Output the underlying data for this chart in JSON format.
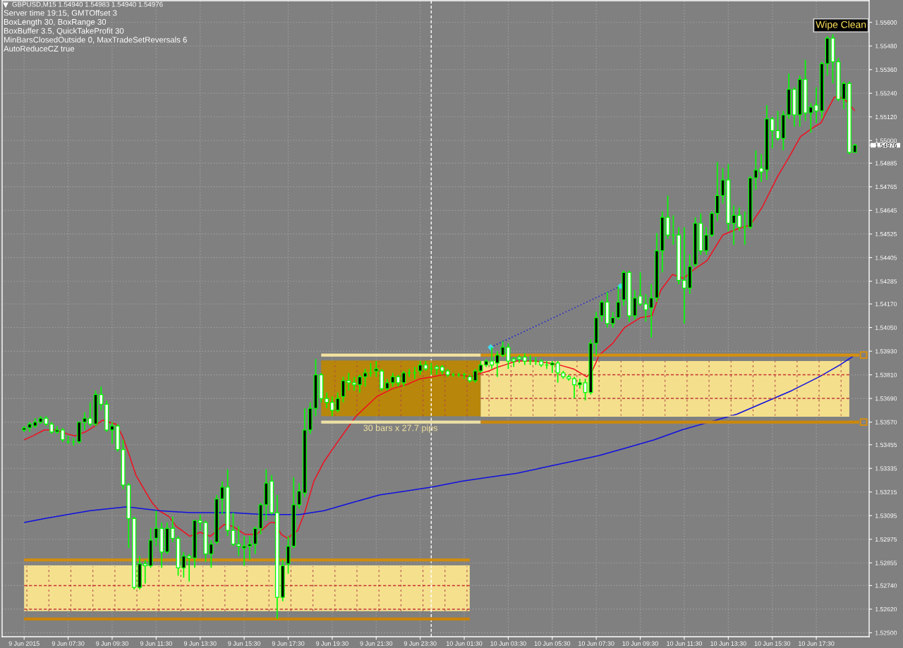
{
  "chart_data": {
    "type": "candlestick",
    "title": "GBPUSD,M15 1.54940 1.54983 1.54940 1.54976",
    "subtitle": "Server time 19:15, GMTOffset 3\nBoxLength 30, BoxRange 30\nBoxBuffer 3.5, QuickTakeProfit 30\nMinBarsClosedOutside 0, MaxTradeSetReversals 6\nAutoReduceCZ true",
    "annotations": [
      "Wipe Clean",
      {
        "text": "30 bars x 27.7 pips",
        "x": "2015-06-09T22:36",
        "y": 1.5357
      }
    ],
    "x": [
      "2015-06-09T05:30",
      "2015-06-09T05:45",
      "2015-06-09T06:00",
      "2015-06-09T06:15",
      "2015-06-09T06:30",
      "2015-06-09T06:45",
      "2015-06-09T07:00",
      "2015-06-09T07:15",
      "2015-06-09T07:30",
      "2015-06-09T07:45",
      "2015-06-09T08:00",
      "2015-06-09T08:15",
      "2015-06-09T08:30",
      "2015-06-09T08:45",
      "2015-06-09T09:00",
      "2015-06-09T09:15",
      "2015-06-09T09:30",
      "2015-06-09T09:45",
      "2015-06-09T10:00",
      "2015-06-09T10:15",
      "2015-06-09T10:30",
      "2015-06-09T10:45",
      "2015-06-09T11:00",
      "2015-06-09T11:15",
      "2015-06-09T11:30",
      "2015-06-09T11:45",
      "2015-06-09T12:00",
      "2015-06-09T12:15",
      "2015-06-09T12:30",
      "2015-06-09T12:45",
      "2015-06-09T13:00",
      "2015-06-09T13:15",
      "2015-06-09T13:30",
      "2015-06-09T13:45",
      "2015-06-09T14:00",
      "2015-06-09T14:15",
      "2015-06-09T14:30",
      "2015-06-09T14:45",
      "2015-06-09T15:00",
      "2015-06-09T15:15",
      "2015-06-09T15:30",
      "2015-06-09T15:45",
      "2015-06-09T16:00",
      "2015-06-09T16:15",
      "2015-06-09T16:30",
      "2015-06-09T16:45",
      "2015-06-09T17:00",
      "2015-06-09T17:15",
      "2015-06-09T17:30",
      "2015-06-09T17:45",
      "2015-06-09T18:00",
      "2015-06-09T18:15",
      "2015-06-09T18:30",
      "2015-06-09T18:45",
      "2015-06-09T19:00",
      "2015-06-09T19:15",
      "2015-06-09T19:30",
      "2015-06-09T19:45",
      "2015-06-09T20:00",
      "2015-06-09T20:15",
      "2015-06-09T20:30",
      "2015-06-09T20:45",
      "2015-06-09T21:00",
      "2015-06-09T21:15",
      "2015-06-09T21:30",
      "2015-06-09T21:45",
      "2015-06-09T22:00",
      "2015-06-09T22:15",
      "2015-06-09T22:30",
      "2015-06-09T22:45",
      "2015-06-09T23:00",
      "2015-06-09T23:15",
      "2015-06-09T23:30",
      "2015-06-09T23:45",
      "2015-06-10T00:00",
      "2015-06-10T00:15",
      "2015-06-10T00:30",
      "2015-06-10T00:45",
      "2015-06-10T01:00",
      "2015-06-10T01:15",
      "2015-06-10T01:30",
      "2015-06-10T01:45",
      "2015-06-10T02:00",
      "2015-06-10T02:15",
      "2015-06-10T02:30",
      "2015-06-10T02:45",
      "2015-06-10T03:00",
      "2015-06-10T03:15",
      "2015-06-10T03:30",
      "2015-06-10T03:45",
      "2015-06-10T04:00",
      "2015-06-10T04:15",
      "2015-06-10T04:30",
      "2015-06-10T04:45",
      "2015-06-10T05:00",
      "2015-06-10T05:15",
      "2015-06-10T05:30",
      "2015-06-10T05:45",
      "2015-06-10T06:00",
      "2015-06-10T06:15",
      "2015-06-10T06:30",
      "2015-06-10T06:45",
      "2015-06-10T07:00",
      "2015-06-10T07:15",
      "2015-06-10T07:30",
      "2015-06-10T07:45",
      "2015-06-10T08:00",
      "2015-06-10T08:15",
      "2015-06-10T08:30",
      "2015-06-10T08:45",
      "2015-06-10T09:00",
      "2015-06-10T09:15",
      "2015-06-10T09:30",
      "2015-06-10T09:45",
      "2015-06-10T10:00",
      "2015-06-10T10:15",
      "2015-06-10T10:30",
      "2015-06-10T10:45",
      "2015-06-10T11:00",
      "2015-06-10T11:15",
      "2015-06-10T11:30",
      "2015-06-10T11:45",
      "2015-06-10T12:00",
      "2015-06-10T12:15",
      "2015-06-10T12:30",
      "2015-06-10T12:45",
      "2015-06-10T13:00",
      "2015-06-10T13:15",
      "2015-06-10T13:30",
      "2015-06-10T13:45",
      "2015-06-10T14:00",
      "2015-06-10T14:15",
      "2015-06-10T14:30",
      "2015-06-10T14:45",
      "2015-06-10T15:00",
      "2015-06-10T15:15",
      "2015-06-10T15:30",
      "2015-06-10T15:45",
      "2015-06-10T16:00",
      "2015-06-10T16:15",
      "2015-06-10T16:30",
      "2015-06-10T16:45",
      "2015-06-10T17:00",
      "2015-06-10T17:15",
      "2015-06-10T17:30",
      "2015-06-10T17:45",
      "2015-06-10T18:00",
      "2015-06-10T18:15",
      "2015-06-10T18:30",
      "2015-06-10T18:45",
      "2015-06-10T19:00",
      "2015-06-10T19:15"
    ],
    "ohlc": [
      [
        1.5353,
        1.5355,
        1.5352,
        1.5354
      ],
      [
        1.5354,
        1.5357,
        1.5352,
        1.5356
      ],
      [
        1.5355,
        1.5359,
        1.5354,
        1.5357
      ],
      [
        1.5357,
        1.536,
        1.5356,
        1.5359
      ],
      [
        1.5359,
        1.536,
        1.5355,
        1.5356
      ],
      [
        1.5356,
        1.5357,
        1.5351,
        1.5352
      ],
      [
        1.5352,
        1.5355,
        1.5351,
        1.5353
      ],
      [
        1.5353,
        1.5354,
        1.5347,
        1.5348
      ],
      [
        1.5347,
        1.535,
        1.5346,
        1.5347
      ],
      [
        1.5347,
        1.5349,
        1.5345,
        1.5347
      ],
      [
        1.5347,
        1.5357,
        1.5346,
        1.5357
      ],
      [
        1.5357,
        1.5362,
        1.5353,
        1.5359
      ],
      [
        1.5359,
        1.5367,
        1.5355,
        1.5356
      ],
      [
        1.5356,
        1.5373,
        1.5355,
        1.5371
      ],
      [
        1.5371,
        1.5375,
        1.5363,
        1.5366
      ],
      [
        1.5366,
        1.5368,
        1.5352,
        1.5353
      ],
      [
        1.5353,
        1.5357,
        1.5346,
        1.5355
      ],
      [
        1.5355,
        1.5356,
        1.5342,
        1.5343
      ],
      [
        1.5343,
        1.5348,
        1.5323,
        1.5325
      ],
      [
        1.5325,
        1.5326,
        1.5293,
        1.5308
      ],
      [
        1.5308,
        1.5309,
        1.5272,
        1.5273
      ],
      [
        1.5273,
        1.5289,
        1.5272,
        1.5285
      ],
      [
        1.5285,
        1.5287,
        1.5275,
        1.5284
      ],
      [
        1.5284,
        1.5303,
        1.5283,
        1.5297
      ],
      [
        1.5298,
        1.5312,
        1.5294,
        1.5303
      ],
      [
        1.5303,
        1.5306,
        1.5283,
        1.5291
      ],
      [
        1.5291,
        1.5306,
        1.529,
        1.5303
      ],
      [
        1.5303,
        1.5309,
        1.5296,
        1.5298
      ],
      [
        1.5298,
        1.5299,
        1.5279,
        1.5283
      ],
      [
        1.5283,
        1.5291,
        1.5278,
        1.5289
      ],
      [
        1.5289,
        1.529,
        1.5276,
        1.5288
      ],
      [
        1.5288,
        1.5307,
        1.5283,
        1.5307
      ],
      [
        1.5307,
        1.531,
        1.5302,
        1.5306
      ],
      [
        1.5306,
        1.5307,
        1.5286,
        1.529
      ],
      [
        1.529,
        1.5297,
        1.5283,
        1.5295
      ],
      [
        1.5296,
        1.532,
        1.5295,
        1.5318
      ],
      [
        1.5318,
        1.5327,
        1.531,
        1.5324
      ],
      [
        1.5324,
        1.5333,
        1.5299,
        1.5302
      ],
      [
        1.5302,
        1.5311,
        1.5294,
        1.5295
      ],
      [
        1.5295,
        1.5304,
        1.5289,
        1.5294
      ],
      [
        1.5293,
        1.5299,
        1.5284,
        1.5294
      ],
      [
        1.5294,
        1.5299,
        1.5287,
        1.5295
      ],
      [
        1.5295,
        1.5304,
        1.529,
        1.5303
      ],
      [
        1.5303,
        1.5316,
        1.53,
        1.5315
      ],
      [
        1.5315,
        1.5333,
        1.5307,
        1.5326
      ],
      [
        1.5327,
        1.533,
        1.531,
        1.5311
      ],
      [
        1.5311,
        1.532,
        1.5257,
        1.5268
      ],
      [
        1.5268,
        1.5287,
        1.5266,
        1.5284
      ],
      [
        1.5285,
        1.5299,
        1.528,
        1.5294
      ],
      [
        1.5294,
        1.5329,
        1.5293,
        1.5315
      ],
      [
        1.5315,
        1.5326,
        1.5313,
        1.5322
      ],
      [
        1.5321,
        1.5364,
        1.5319,
        1.5353
      ],
      [
        1.5353,
        1.5367,
        1.5351,
        1.5364
      ],
      [
        1.5364,
        1.5389,
        1.536,
        1.5381
      ],
      [
        1.5381,
        1.5382,
        1.5367,
        1.5369
      ],
      [
        1.5369,
        1.5372,
        1.5364,
        1.5367
      ],
      [
        1.5367,
        1.537,
        1.536,
        1.5363
      ],
      [
        1.5363,
        1.5372,
        1.5362,
        1.5369
      ],
      [
        1.537,
        1.538,
        1.5367,
        1.5378
      ],
      [
        1.5378,
        1.5382,
        1.5373,
        1.5377
      ],
      [
        1.5377,
        1.538,
        1.5373,
        1.5376
      ],
      [
        1.5376,
        1.5381,
        1.5372,
        1.538
      ],
      [
        1.538,
        1.5384,
        1.5375,
        1.5382
      ],
      [
        1.5382,
        1.5387,
        1.538,
        1.5382
      ],
      [
        1.5383,
        1.5388,
        1.538,
        1.5384
      ],
      [
        1.5383,
        1.5384,
        1.5373,
        1.5374
      ],
      [
        1.5374,
        1.5379,
        1.5373,
        1.5377
      ],
      [
        1.5377,
        1.5382,
        1.5375,
        1.538
      ],
      [
        1.538,
        1.5381,
        1.5375,
        1.5377
      ],
      [
        1.5377,
        1.5383,
        1.5375,
        1.5382
      ],
      [
        1.5382,
        1.5384,
        1.538,
        1.5382
      ],
      [
        1.5382,
        1.5385,
        1.5379,
        1.5382
      ],
      [
        1.5383,
        1.5388,
        1.5381,
        1.5386
      ],
      [
        1.5386,
        1.5388,
        1.5383,
        1.5384
      ],
      [
        1.5384,
        1.5387,
        1.5381,
        1.5384
      ],
      [
        1.5385,
        1.5386,
        1.5381,
        1.5384
      ],
      [
        1.5385,
        1.5386,
        1.5381,
        1.5383
      ],
      [
        1.5383,
        1.5384,
        1.538,
        1.5381
      ],
      [
        1.5381,
        1.5382,
        1.538,
        1.5381
      ],
      [
        1.5381,
        1.5382,
        1.538,
        1.5381
      ],
      [
        1.5381,
        1.5382,
        1.5379,
        1.5381
      ],
      [
        1.538,
        1.5381,
        1.5377,
        1.5378
      ],
      [
        1.5378,
        1.5384,
        1.5377,
        1.5383
      ],
      [
        1.5383,
        1.5388,
        1.5382,
        1.5386
      ],
      [
        1.5386,
        1.5389,
        1.5385,
        1.5388
      ],
      [
        1.5388,
        1.5395,
        1.5384,
        1.5386
      ],
      [
        1.5387,
        1.5393,
        1.538,
        1.5391
      ],
      [
        1.5391,
        1.5398,
        1.539,
        1.5395
      ],
      [
        1.5395,
        1.5397,
        1.5384,
        1.5388
      ],
      [
        1.5389,
        1.539,
        1.5385,
        1.5388
      ],
      [
        1.539,
        1.5391,
        1.5387,
        1.5389
      ],
      [
        1.539,
        1.5392,
        1.5386,
        1.5388
      ],
      [
        1.5388,
        1.5391,
        1.5386,
        1.5388
      ],
      [
        1.5388,
        1.539,
        1.5386,
        1.5388
      ],
      [
        1.5388,
        1.5389,
        1.5385,
        1.5386
      ],
      [
        1.5386,
        1.5388,
        1.5384,
        1.5386
      ],
      [
        1.5386,
        1.5388,
        1.5382,
        1.5387
      ],
      [
        1.5387,
        1.5388,
        1.5377,
        1.5382
      ],
      [
        1.5382,
        1.5383,
        1.5379,
        1.538
      ],
      [
        1.538,
        1.5381,
        1.5378,
        1.5379
      ],
      [
        1.5379,
        1.538,
        1.5369,
        1.5376
      ],
      [
        1.5376,
        1.5379,
        1.5374,
        1.5377
      ],
      [
        1.5377,
        1.5379,
        1.5368,
        1.5372
      ],
      [
        1.5372,
        1.5399,
        1.5371,
        1.5397
      ],
      [
        1.5397,
        1.5413,
        1.5391,
        1.541
      ],
      [
        1.5411,
        1.5419,
        1.5408,
        1.5418
      ],
      [
        1.5418,
        1.5423,
        1.5405,
        1.5407
      ],
      [
        1.5407,
        1.5413,
        1.5405,
        1.541
      ],
      [
        1.541,
        1.5426,
        1.5409,
        1.5418
      ],
      [
        1.5419,
        1.5434,
        1.5416,
        1.5433
      ],
      [
        1.5433,
        1.5434,
        1.5408,
        1.5411
      ],
      [
        1.5411,
        1.5424,
        1.5409,
        1.542
      ],
      [
        1.5421,
        1.5433,
        1.5416,
        1.5417
      ],
      [
        1.5417,
        1.5422,
        1.5408,
        1.5414
      ],
      [
        1.5415,
        1.5427,
        1.54,
        1.542
      ],
      [
        1.542,
        1.5453,
        1.5418,
        1.5444
      ],
      [
        1.5444,
        1.5464,
        1.5433,
        1.5461
      ],
      [
        1.5461,
        1.5472,
        1.545,
        1.5452
      ],
      [
        1.5452,
        1.5462,
        1.5447,
        1.5452
      ],
      [
        1.5452,
        1.5456,
        1.5427,
        1.5429
      ],
      [
        1.5429,
        1.5456,
        1.5407,
        1.5425
      ],
      [
        1.5425,
        1.5442,
        1.5422,
        1.5436
      ],
      [
        1.5437,
        1.5461,
        1.5436,
        1.5458
      ],
      [
        1.5458,
        1.5463,
        1.5442,
        1.5444
      ],
      [
        1.5444,
        1.5456,
        1.5442,
        1.5452
      ],
      [
        1.5452,
        1.5464,
        1.5451,
        1.5463
      ],
      [
        1.5463,
        1.5489,
        1.5459,
        1.5472
      ],
      [
        1.5472,
        1.5486,
        1.5468,
        1.548
      ],
      [
        1.548,
        1.5488,
        1.5454,
        1.5458
      ],
      [
        1.5458,
        1.5467,
        1.5447,
        1.5462
      ],
      [
        1.5462,
        1.5466,
        1.5454,
        1.5456
      ],
      [
        1.5456,
        1.5464,
        1.5447,
        1.5456
      ],
      [
        1.5456,
        1.5482,
        1.5455,
        1.5481
      ],
      [
        1.5481,
        1.5495,
        1.5475,
        1.5485
      ],
      [
        1.5486,
        1.5493,
        1.5479,
        1.5484
      ],
      [
        1.5485,
        1.5518,
        1.548,
        1.5511
      ],
      [
        1.5511,
        1.5512,
        1.5496,
        1.5505
      ],
      [
        1.5505,
        1.5515,
        1.55,
        1.5501
      ],
      [
        1.5501,
        1.5515,
        1.5495,
        1.5513
      ],
      [
        1.5513,
        1.5534,
        1.5511,
        1.5526
      ],
      [
        1.5526,
        1.5527,
        1.5507,
        1.5513
      ],
      [
        1.5513,
        1.5533,
        1.5507,
        1.5531
      ],
      [
        1.5531,
        1.5541,
        1.551,
        1.5514
      ],
      [
        1.5514,
        1.5519,
        1.5504,
        1.5517
      ],
      [
        1.5518,
        1.5527,
        1.5509,
        1.5515
      ],
      [
        1.5515,
        1.554,
        1.5511,
        1.5539
      ],
      [
        1.5539,
        1.5553,
        1.5533,
        1.5552
      ],
      [
        1.5552,
        1.5554,
        1.5529,
        1.554
      ],
      [
        1.554,
        1.5542,
        1.552,
        1.5521
      ],
      [
        1.5521,
        1.553,
        1.5516,
        1.5529
      ],
      [
        1.5529,
        1.553,
        1.5493,
        1.5494
      ],
      [
        1.5494,
        1.54983,
        1.5494,
        1.54976
      ]
    ],
    "color": "#00ff00",
    "colors": [
      "#000000",
      "#000000",
      "#000000",
      "#000000",
      "#ffffff",
      "#ffffff",
      "#000000",
      "#ffffff",
      "#00ff00",
      "#00ff00",
      "#000000",
      "#000000",
      "#ffffff",
      "#000000",
      "#ffffff",
      "#ffffff",
      "#000000",
      "#ffffff",
      "#ffffff",
      "#ffffff",
      "#ffffff",
      "#000000",
      "#ffffff",
      "#000000",
      "#000000",
      "#ffffff",
      "#000000",
      "#ffffff",
      "#ffffff",
      "#000000",
      "#ffffff",
      "#000000",
      "#ffffff",
      "#ffffff",
      "#000000",
      "#000000",
      "#000000",
      "#ffffff",
      "#ffffff",
      "#ffffff",
      "#000000",
      "#000000",
      "#000000",
      "#000000",
      "#000000",
      "#ffffff",
      "#ffffff",
      "#000000",
      "#000000",
      "#000000",
      "#000000",
      "#000000",
      "#000000",
      "#000000",
      "#ffffff",
      "#ffffff",
      "#ffffff",
      "#000000",
      "#000000",
      "#ffffff",
      "#ffffff",
      "#000000",
      "#000000",
      "#00ff00",
      "#000000",
      "#ffffff",
      "#000000",
      "#000000",
      "#ffffff",
      "#000000",
      "#00ff00",
      "#00ff00",
      "#000000",
      "#ffffff",
      "#00ff00",
      "#ffffff",
      "#ffffff",
      "#ffffff",
      "#00ff00",
      "#00ff00",
      "#00ff00",
      "#ffffff",
      "#000000",
      "#000000",
      "#000000",
      "#ffffff",
      "#000000",
      "#000000",
      "#ffffff",
      "#ffffff",
      "#ffffff",
      "#ffffff",
      "#00ff00",
      "#00ff00",
      "#ffffff",
      "#00ff00",
      "#000000",
      "#ffffff",
      "#ffffff",
      "#ffffff",
      "#ffffff",
      "#000000",
      "#ffffff",
      "#000000",
      "#000000",
      "#000000",
      "#ffffff",
      "#000000",
      "#000000",
      "#000000",
      "#ffffff",
      "#000000",
      "#ffffff",
      "#ffffff",
      "#000000",
      "#000000",
      "#000000",
      "#ffffff",
      "#00ff00",
      "#ffffff",
      "#ffffff",
      "#000000",
      "#000000",
      "#ffffff",
      "#000000",
      "#000000",
      "#000000",
      "#000000",
      "#ffffff",
      "#000000",
      "#ffffff",
      "#00ff00",
      "#000000",
      "#000000",
      "#ffffff",
      "#000000",
      "#ffffff",
      "#ffffff",
      "#000000",
      "#000000",
      "#ffffff",
      "#000000",
      "#ffffff",
      "#000000",
      "#ffffff",
      "#000000",
      "#000000",
      "#ffffff",
      "#ffffff",
      "#000000",
      "#ffffff",
      "#000000"
    ],
    "series": [
      {
        "type": "line",
        "color": "#f01020",
        "x": [
          "2015-06-09T05:30",
          "2015-06-09T05:54",
          "2015-06-09T06:25",
          "2015-06-09T06:56",
          "2015-06-09T07:28",
          "2015-06-09T07:49",
          "2015-06-09T08:17",
          "2015-06-09T08:43",
          "2015-06-09T09:04",
          "2015-06-09T09:20",
          "2015-06-09T09:40",
          "2015-06-09T09:58",
          "2015-06-09T10:17",
          "2015-06-09T10:35",
          "2015-06-09T11:00",
          "2015-06-09T11:19",
          "2015-06-09T11:38",
          "2015-06-09T12:05",
          "2015-06-09T12:25",
          "2015-06-09T13:02",
          "2015-06-09T13:30",
          "2015-06-09T13:58",
          "2015-06-09T14:17",
          "2015-06-09T14:35",
          "2015-06-09T15:00",
          "2015-06-09T15:32",
          "2015-06-09T16:04",
          "2015-06-09T16:23",
          "2015-06-09T16:41",
          "2015-06-09T16:53",
          "2015-06-09T17:11",
          "2015-06-09T17:28",
          "2015-06-09T17:56",
          "2015-06-09T18:15",
          "2015-06-09T18:40",
          "2015-06-09T19:08",
          "2015-06-09T19:41",
          "2015-06-09T20:35",
          "2015-06-09T21:32",
          "2015-06-09T22:15",
          "2015-06-09T22:53",
          "2015-06-09T23:30",
          "2015-06-10T00:02",
          "2015-06-10T00:32",
          "2015-06-10T01:17",
          "2015-06-10T01:47",
          "2015-06-10T02:19",
          "2015-06-10T02:38",
          "2015-06-10T03:02",
          "2015-06-10T03:20",
          "2015-06-10T03:53",
          "2015-06-10T04:43",
          "2015-06-10T05:20",
          "2015-06-10T05:50",
          "2015-06-10T06:28",
          "2015-06-10T07:04",
          "2015-06-10T07:19",
          "2015-06-10T07:38",
          "2015-06-10T08:15",
          "2015-06-10T08:47",
          "2015-06-10T09:30",
          "2015-06-10T10:02",
          "2015-06-10T10:26",
          "2015-06-10T10:58",
          "2015-06-10T11:28",
          "2015-06-10T12:00",
          "2015-06-10T12:32",
          "2015-06-10T13:15",
          "2015-06-10T13:53",
          "2015-06-10T14:30",
          "2015-06-10T15:02",
          "2015-06-10T15:45",
          "2015-06-10T16:17",
          "2015-06-10T16:47",
          "2015-06-10T17:25",
          "2015-06-10T17:43",
          "2015-06-10T17:56",
          "2015-06-10T18:19",
          "2015-06-10T18:34",
          "2015-06-10T18:53",
          "2015-06-10T19:15"
        ],
        "values": [
          1.5348,
          1.535,
          1.5353,
          1.5353,
          1.5351,
          1.535,
          1.5352,
          1.5355,
          1.5358,
          1.5357,
          1.5356,
          1.535,
          1.534,
          1.533,
          1.5322,
          1.5316,
          1.5312,
          1.5309,
          1.5304,
          1.5299,
          1.5301,
          1.5299,
          1.5302,
          1.5305,
          1.5304,
          1.53,
          1.53,
          1.5303,
          1.5306,
          1.5306,
          1.53,
          1.5298,
          1.5302,
          1.5311,
          1.5327,
          1.5337,
          1.5346,
          1.536,
          1.537,
          1.5374,
          1.5376,
          1.5379,
          1.538,
          1.5381,
          1.5381,
          1.538,
          1.5382,
          1.5383,
          1.5385,
          1.5386,
          1.5388,
          1.5388,
          1.5387,
          1.5386,
          1.5384,
          1.538,
          1.5383,
          1.5391,
          1.5397,
          1.5405,
          1.541,
          1.5411,
          1.5424,
          1.5432,
          1.543,
          1.5435,
          1.5439,
          1.5452,
          1.5455,
          1.5457,
          1.5466,
          1.5482,
          1.5492,
          1.5502,
          1.5507,
          1.5509,
          1.5514,
          1.5522,
          1.5522,
          1.552,
          1.5515
        ]
      },
      {
        "type": "line",
        "color": "#1010e0",
        "x": [
          "2015-06-09T05:30",
          "2015-06-09T06:25",
          "2015-06-09T07:28",
          "2015-06-09T08:30",
          "2015-06-09T09:20",
          "2015-06-09T10:10",
          "2015-06-09T11:38",
          "2015-06-09T13:02",
          "2015-06-09T14:55",
          "2015-06-09T16:23",
          "2015-06-09T18:02",
          "2015-06-09T18:34",
          "2015-06-09T19:08",
          "2015-06-09T20:23",
          "2015-06-09T21:38",
          "2015-06-09T22:53",
          "2015-06-10T00:02",
          "2015-06-10T01:23",
          "2015-06-10T02:38",
          "2015-06-10T03:53",
          "2015-06-10T05:08",
          "2015-06-10T06:23",
          "2015-06-10T07:38",
          "2015-06-10T08:53",
          "2015-06-10T10:08",
          "2015-06-10T11:23",
          "2015-06-10T12:38",
          "2015-06-10T13:53",
          "2015-06-10T15:08",
          "2015-06-10T16:23",
          "2015-06-10T17:38",
          "2015-06-10T18:34",
          "2015-06-10T19:15"
        ],
        "values": [
          1.5306,
          1.5308,
          1.531,
          1.5312,
          1.5313,
          1.5314,
          1.5312,
          1.5311,
          1.5311,
          1.531,
          1.531,
          1.5311,
          1.5312,
          1.5316,
          1.532,
          1.5322,
          1.5324,
          1.5327,
          1.5329,
          1.5331,
          1.5334,
          1.5337,
          1.534,
          1.5344,
          1.5348,
          1.5353,
          1.5357,
          1.5361,
          1.5367,
          1.5373,
          1.538,
          1.5386,
          1.5391
        ]
      },
      {
        "type": "line",
        "color": "#f5e08e",
        "x": [
          "2015-06-09T05:30",
          "2015-06-10T01:45"
        ],
        "values": [
          1.5284,
          1.5284
        ],
        "lower": [
          1.5261,
          1.5261
        ],
        "upper": [
          1.5284,
          1.5284
        ]
      },
      {
        "type": "line",
        "color": "#d08c10",
        "x": [
          "2015-06-09T05:30",
          "2015-06-10T01:45"
        ],
        "values": [
          1.5287,
          1.5287
        ]
      },
      {
        "type": "line",
        "color": "#c8840c",
        "x": [
          "2015-06-09T05:30",
          "2015-06-10T01:45"
        ],
        "values": [
          1.5257,
          1.5257
        ]
      },
      {
        "type": "line",
        "color": "#c83232",
        "line_style": "dashed",
        "x": [
          "2015-06-09T05:30",
          "2015-06-10T01:45"
        ],
        "values": [
          1.5274,
          1.5274
        ]
      },
      {
        "type": "line",
        "color": "#c03838",
        "line_style": "dashed",
        "x": [
          "2015-06-09T05:30",
          "2015-06-10T01:45"
        ],
        "values": [
          1.5262,
          1.5262
        ]
      },
      {
        "type": "line",
        "color": "#b8860b",
        "x": [
          "2015-06-09T19:00",
          "2015-06-10T02:15"
        ],
        "values": [
          1.5388,
          1.5388
        ],
        "lower": [
          1.536,
          1.536
        ],
        "upper": [
          1.5388,
          1.5388
        ]
      },
      {
        "type": "line",
        "color": "#f3e3a0",
        "x": [
          "2015-06-09T19:00",
          "2015-06-10T02:15"
        ],
        "values": [
          1.5391,
          1.5391
        ]
      },
      {
        "type": "line",
        "color": "#ece0a6",
        "x": [
          "2015-06-09T19:00",
          "2015-06-10T02:15"
        ],
        "values": [
          1.5357,
          1.5357
        ]
      },
      {
        "type": "line",
        "color": "#f4df8c",
        "x": [
          "2015-06-10T02:15",
          "2015-06-10T19:00"
        ],
        "values": [
          1.536,
          1.536
        ],
        "lower": [
          1.536,
          1.536
        ],
        "upper": [
          1.5388,
          1.5388
        ]
      },
      {
        "type": "line",
        "color": "#d4900f",
        "x": [
          "2015-06-10T02:15",
          "2015-06-10T19:27"
        ],
        "values": [
          1.5391,
          1.5391
        ]
      },
      {
        "type": "line",
        "color": "#cc880b",
        "x": [
          "2015-06-10T02:15",
          "2015-06-10T19:27"
        ],
        "values": [
          1.5357,
          1.5357
        ]
      },
      {
        "type": "line",
        "color": "#c43434",
        "line_style": "dashed",
        "x": [
          "2015-06-10T02:15",
          "2015-06-10T19:00"
        ],
        "values": [
          1.5381,
          1.5381
        ]
      },
      {
        "type": "line",
        "color": "#bc3a3a",
        "line_style": "dashed",
        "x": [
          "2015-06-10T02:15",
          "2015-06-10T19:00"
        ],
        "values": [
          1.5369,
          1.5369
        ]
      },
      {
        "type": "line",
        "color": "#2020d0",
        "line_style": "dotted",
        "marker": "diamond",
        "colors": [
          "#40d8f0",
          "#40d8f0"
        ],
        "x": [
          "2015-06-10T02:42",
          "2015-06-10T08:36"
        ],
        "values": [
          1.5395,
          1.5426
        ]
      },
      {
        "type": "scatter",
        "color": "#d48e12",
        "marker": "square",
        "x": [
          "2015-06-10T19:39",
          "2015-06-10T19:39"
        ],
        "values": [
          1.5391,
          1.5357
        ]
      }
    ],
    "ref_lines": [
      {
        "axis": "x",
        "value": "2015-06-10T00:00",
        "color": "#ffffff",
        "line_style": "dashed"
      }
    ],
    "xlim": [
      "2015-06-09T04:30",
      "2015-06-10T19:54"
    ],
    "xticks": [
      {
        "value": "2015-06-09T05:30",
        "label": "9 Jun 2015"
      },
      {
        "value": "2015-06-09T07:30",
        "label": "9 Jun 07:30"
      },
      {
        "value": "2015-06-09T09:30",
        "label": "9 Jun 09:30"
      },
      {
        "value": "2015-06-09T11:30",
        "label": "9 Jun 11:30"
      },
      {
        "value": "2015-06-09T13:30",
        "label": "9 Jun 13:30"
      },
      {
        "value": "2015-06-09T15:30",
        "label": "9 Jun 15:30"
      },
      {
        "value": "2015-06-09T17:30",
        "label": "9 Jun 17:30"
      },
      {
        "value": "2015-06-09T19:30",
        "label": "9 Jun 19:30"
      },
      {
        "value": "2015-06-09T21:30",
        "label": "9 Jun 21:30"
      },
      {
        "value": "2015-06-09T23:30",
        "label": "9 Jun 23:30"
      },
      {
        "value": "2015-06-10T01:30",
        "label": "10 Jun 01:30"
      },
      {
        "value": "2015-06-10T03:30",
        "label": "10 Jun 03:30"
      },
      {
        "value": "2015-06-10T05:30",
        "label": "10 Jun 05:30"
      },
      {
        "value": "2015-06-10T07:30",
        "label": "10 Jun 07:30"
      },
      {
        "value": "2015-06-10T09:30",
        "label": "10 Jun 09:30"
      },
      {
        "value": "2015-06-10T11:30",
        "label": "10 Jun 11:30"
      },
      {
        "value": "2015-06-10T13:30",
        "label": "10 Jun 13:30"
      },
      {
        "value": "2015-06-10T15:30",
        "label": "10 Jun 15:30"
      },
      {
        "value": "2015-06-10T17:30",
        "label": "10 Jun 17:30"
      }
    ],
    "ylim": [
      1.5248,
      1.5571
    ],
    "yticks": [
      {
        "value": 1.556,
        "label": "1.55600"
      },
      {
        "value": 1.5548,
        "label": "1.55480"
      },
      {
        "value": 1.5536,
        "label": "1.55360"
      },
      {
        "value": 1.5524,
        "label": "1.55240"
      },
      {
        "value": 1.5512,
        "label": "1.55120"
      },
      {
        "value": 1.55,
        "label": "1.55000"
      },
      1.54976,
      1.54885,
      1.54765,
      1.54645,
      1.54525,
      1.54405,
      1.54285,
      {
        "value": 1.5417,
        "label": "1.54170"
      },
      {
        "value": 1.5405,
        "label": "1.54050"
      },
      {
        "value": 1.5393,
        "label": "1.53930"
      },
      {
        "value": 1.5381,
        "label": "1.53810"
      },
      {
        "value": 1.5369,
        "label": "1.53690"
      },
      {
        "value": 1.5357,
        "label": "1.53570"
      },
      1.53455,
      1.53335,
      1.53215,
      1.53095,
      1.52975,
      1.52855,
      {
        "value": 1.5274,
        "label": "1.52740"
      },
      {
        "value": 1.5262,
        "label": "1.52620"
      },
      {
        "value": 1.525,
        "label": "1.52500"
      }
    ],
    "grid": true
  }
}
